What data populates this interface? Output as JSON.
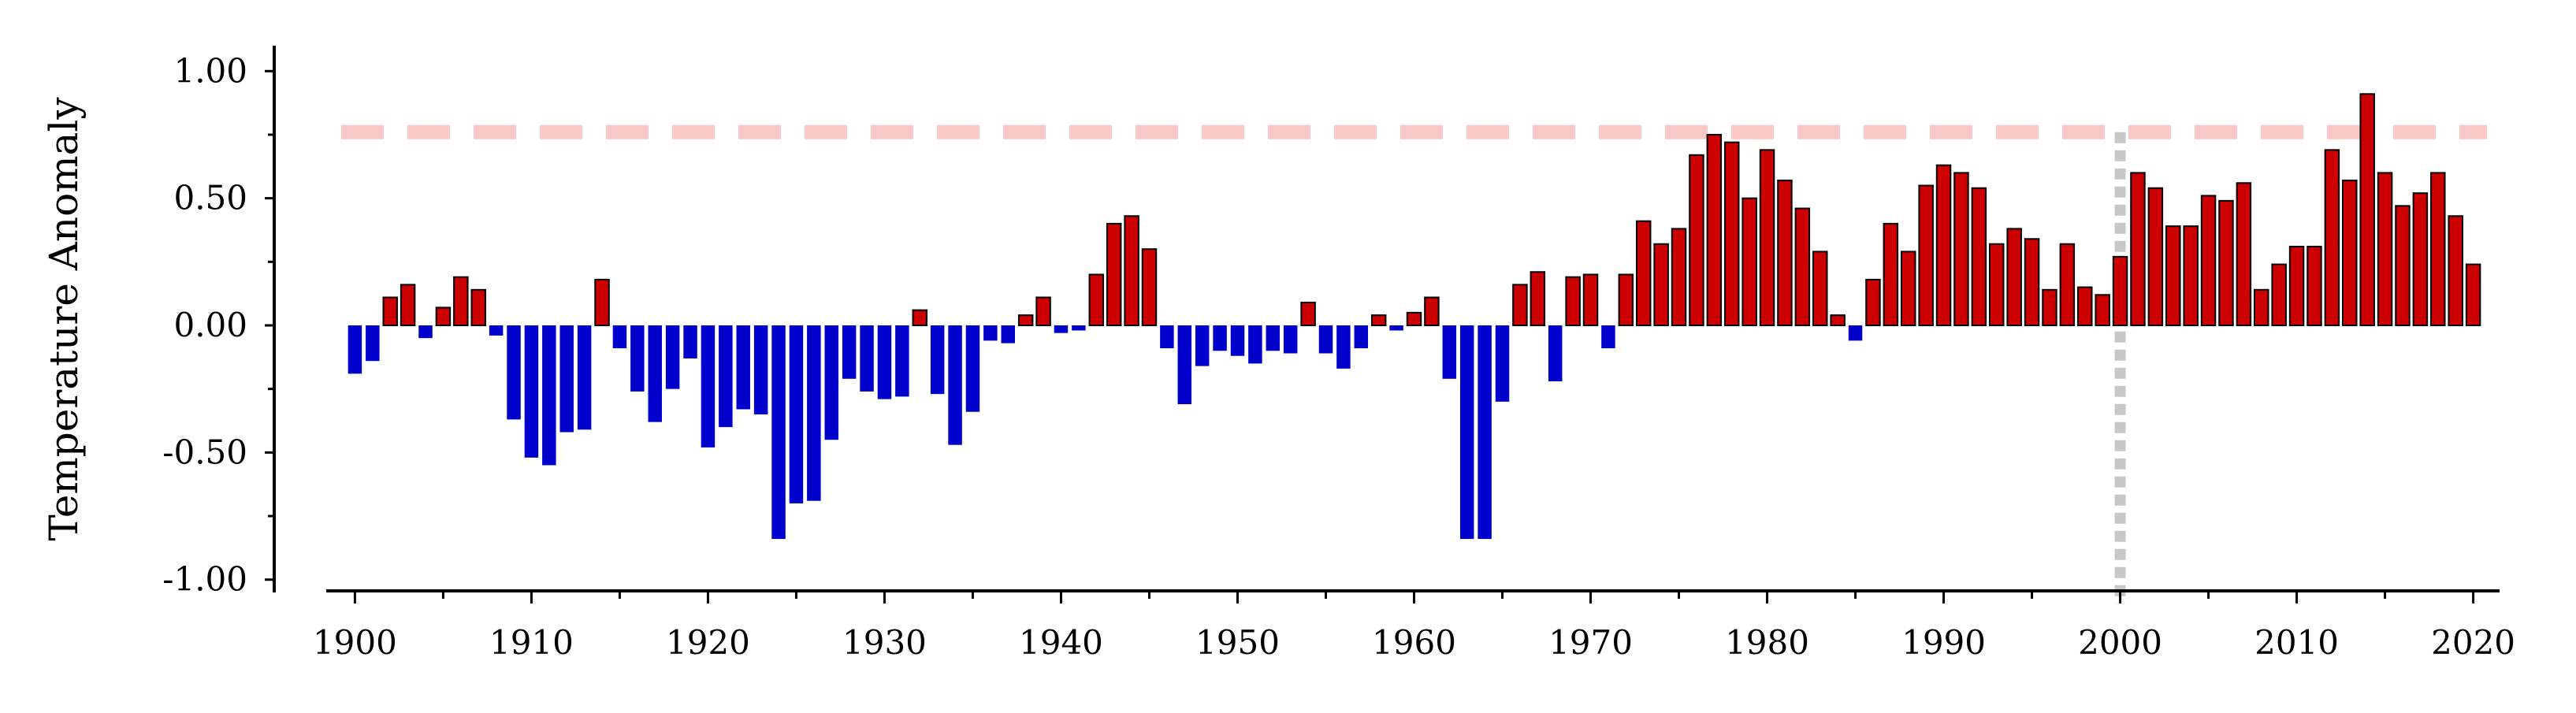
{
  "chart_data": {
    "type": "bar",
    "ylabel": "Temperature Anomaly",
    "xlim": [
      1899,
      2021
    ],
    "ylim": [
      -1.1,
      1.1
    ],
    "y_tick_values": [
      -1.0,
      -0.5,
      0.0,
      0.5,
      1.0
    ],
    "y_tick_labels": [
      "-1.00",
      "-0.50",
      "0.00",
      "0.50",
      "1.00"
    ],
    "x_tick_values": [
      1900,
      1910,
      1920,
      1930,
      1940,
      1950,
      1960,
      1970,
      1980,
      1990,
      2000,
      2010,
      2020
    ],
    "x_tick_labels": [
      "1900",
      "1910",
      "1920",
      "1930",
      "1940",
      "1950",
      "1960",
      "1970",
      "1980",
      "1990",
      "2000",
      "2010",
      "2020"
    ],
    "grid": false,
    "reference_line": {
      "orientation": "horizontal",
      "value": 0.76,
      "style": "dashed"
    },
    "marker_line": {
      "orientation": "vertical",
      "value": 2000,
      "style": "dotted"
    },
    "colors": {
      "positive": "#cc0000",
      "negative": "#0000cc",
      "positive_edge": "#000000",
      "reference_line": "#fbc8c8",
      "marker_line": "#c8c8c8",
      "axis": "#000000"
    },
    "x": [
      1900,
      1901,
      1902,
      1903,
      1904,
      1905,
      1906,
      1907,
      1908,
      1909,
      1910,
      1911,
      1912,
      1913,
      1914,
      1915,
      1916,
      1917,
      1918,
      1919,
      1920,
      1921,
      1922,
      1923,
      1924,
      1925,
      1926,
      1927,
      1928,
      1929,
      1930,
      1931,
      1932,
      1933,
      1934,
      1935,
      1936,
      1937,
      1938,
      1939,
      1940,
      1941,
      1942,
      1943,
      1944,
      1945,
      1946,
      1947,
      1948,
      1949,
      1950,
      1951,
      1952,
      1953,
      1954,
      1955,
      1956,
      1957,
      1958,
      1959,
      1960,
      1961,
      1962,
      1963,
      1964,
      1965,
      1966,
      1967,
      1968,
      1969,
      1970,
      1971,
      1972,
      1973,
      1974,
      1975,
      1976,
      1977,
      1978,
      1979,
      1980,
      1981,
      1982,
      1983,
      1984,
      1985,
      1986,
      1987,
      1988,
      1989,
      1990,
      1991,
      1992,
      1993,
      1994,
      1995,
      1996,
      1997,
      1998,
      1999,
      2000,
      2001,
      2002,
      2003,
      2004,
      2005,
      2006,
      2007,
      2008,
      2009,
      2010,
      2011,
      2012,
      2013,
      2014,
      2015,
      2016,
      2017,
      2018,
      2019,
      2020
    ],
    "values": [
      -0.19,
      -0.14,
      0.11,
      0.16,
      -0.05,
      0.07,
      0.19,
      0.14,
      -0.04,
      -0.37,
      -0.52,
      -0.55,
      -0.42,
      -0.41,
      0.18,
      -0.09,
      -0.26,
      -0.38,
      -0.25,
      -0.13,
      -0.48,
      -0.4,
      -0.33,
      -0.35,
      -0.84,
      -0.7,
      -0.69,
      -0.45,
      -0.21,
      -0.26,
      -0.29,
      -0.28,
      0.06,
      -0.27,
      -0.47,
      -0.34,
      -0.06,
      -0.07,
      0.04,
      0.11,
      -0.03,
      -0.02,
      0.2,
      0.4,
      0.43,
      0.3,
      -0.09,
      -0.31,
      -0.16,
      -0.1,
      -0.12,
      -0.15,
      -0.1,
      -0.11,
      0.09,
      -0.11,
      -0.17,
      -0.09,
      0.04,
      -0.02,
      0.05,
      0.11,
      -0.21,
      -0.84,
      -0.84,
      -0.3,
      0.16,
      0.21,
      -0.22,
      0.19,
      0.2,
      -0.09,
      0.2,
      0.41,
      0.32,
      0.38,
      0.67,
      0.75,
      0.72,
      0.5,
      0.69,
      0.57,
      0.46,
      0.29,
      0.04,
      -0.06,
      0.18,
      0.4,
      0.29,
      0.55,
      0.63,
      0.6,
      0.54,
      0.32,
      0.38,
      0.34,
      0.14,
      0.32,
      0.15,
      0.12,
      0.27,
      0.6,
      0.54,
      0.39,
      0.39,
      0.51,
      0.49,
      0.56,
      0.14,
      0.24,
      0.31,
      0.31,
      0.69,
      0.57,
      0.91,
      0.6,
      0.47,
      0.52,
      0.6,
      0.43,
      0.24
    ]
  }
}
